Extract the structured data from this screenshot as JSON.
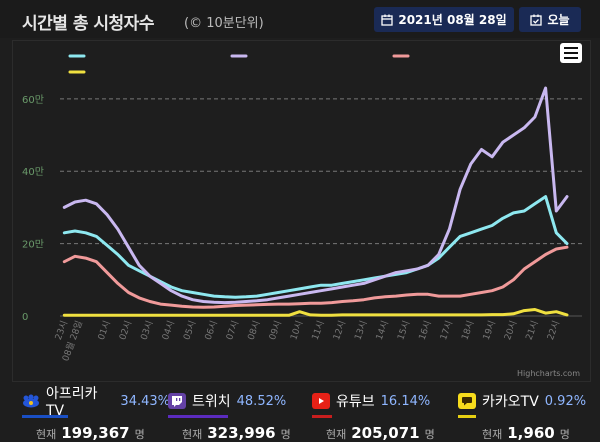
{
  "header": {
    "title": "시간별 총 시청자수",
    "subtitle": "(© 10분단위)",
    "date_label": "2021년 08월 28일",
    "today_label": "오늘"
  },
  "chart": {
    "watermark": "Highcharts.com"
  },
  "chart_data": {
    "type": "line",
    "ylim": [
      0,
      65
    ],
    "ylabel": "",
    "y_ticks": [
      "0",
      "20만",
      "40만",
      "60만"
    ],
    "x_ticks": [
      "23시",
      "08월 28일",
      "01시",
      "02시",
      "03시",
      "04시",
      "05시",
      "06시",
      "07시",
      "08시",
      "09시",
      "10시",
      "11시",
      "12시",
      "13시",
      "14시",
      "15시",
      "16시",
      "17시",
      "18시",
      "19시",
      "20시",
      "21시",
      "22시"
    ],
    "x": [
      -1,
      -0.5,
      0,
      0.5,
      1,
      1.5,
      2,
      2.5,
      3,
      3.5,
      4,
      4.5,
      5,
      5.5,
      6,
      6.5,
      7,
      7.5,
      8,
      8.5,
      9,
      9.5,
      10,
      10.5,
      11,
      11.5,
      12,
      12.5,
      13,
      13.5,
      14,
      14.5,
      15,
      15.5,
      16,
      16.5,
      17,
      17.5,
      18,
      18.5,
      19,
      19.5,
      20,
      20.5,
      21,
      21.5,
      22,
      22.5
    ],
    "series": [
      {
        "color": "#8ee8f0",
        "values": [
          23,
          23.5,
          23,
          22,
          19.5,
          17,
          14,
          12.5,
          11,
          9.5,
          8,
          7,
          6.5,
          6,
          5.5,
          5.3,
          5.2,
          5.3,
          5.5,
          6,
          6.5,
          7,
          7.5,
          8,
          8.5,
          8.5,
          9,
          9.5,
          10,
          10.5,
          11,
          11.5,
          12,
          13,
          14,
          16,
          19,
          22,
          23,
          24,
          25,
          27,
          28.5,
          29,
          31,
          33,
          23,
          20
        ]
      },
      {
        "color": "#c9b8f0",
        "values": [
          30,
          31.5,
          32,
          31,
          28,
          24,
          19,
          14,
          11,
          9,
          7,
          5.5,
          4.5,
          4,
          3.8,
          3.7,
          3.8,
          4,
          4.2,
          4.5,
          5,
          5.5,
          6,
          6.5,
          7,
          7.5,
          8,
          8.5,
          9,
          10,
          11,
          12,
          12.5,
          13,
          14,
          17,
          24,
          35,
          42,
          46,
          44,
          48,
          50,
          52,
          55,
          63,
          29,
          33
        ]
      },
      {
        "color": "#f09a9a",
        "values": [
          15,
          16.5,
          16,
          15,
          12,
          9,
          6.5,
          5,
          4,
          3.3,
          3,
          2.7,
          2.5,
          2.4,
          2.5,
          2.7,
          2.9,
          3,
          3.1,
          3.2,
          3.3,
          3.3,
          3.4,
          3.5,
          3.5,
          3.7,
          4,
          4.2,
          4.5,
          5,
          5.3,
          5.5,
          5.8,
          6,
          6,
          5.5,
          5.5,
          5.5,
          6,
          6.5,
          7,
          8,
          10,
          13,
          15,
          17,
          18.5,
          19
        ]
      },
      {
        "color": "#f0e040",
        "values": [
          0.2,
          0.2,
          0.2,
          0.2,
          0.2,
          0.2,
          0.2,
          0.2,
          0.2,
          0.2,
          0.2,
          0.2,
          0.2,
          0.2,
          0.2,
          0.2,
          0.2,
          0.2,
          0.2,
          0.2,
          0.2,
          0.2,
          1.2,
          0.3,
          0.2,
          0.2,
          0.3,
          0.3,
          0.3,
          0.3,
          0.3,
          0.3,
          0.3,
          0.3,
          0.3,
          0.3,
          0.3,
          0.3,
          0.3,
          0.3,
          0.4,
          0.4,
          0.6,
          1.5,
          1.8,
          0.8,
          1.2,
          0.3
        ]
      }
    ]
  },
  "platforms": [
    {
      "name": "아프리카TV",
      "pct": "34.43%",
      "count_label": "현재",
      "count": "199,367",
      "unit": "명",
      "bar_color": "#1a4fc4",
      "icon": "afreeca-logo-icon"
    },
    {
      "name": "트위치",
      "pct": "48.52%",
      "count_label": "현재",
      "count": "323,996",
      "unit": "명",
      "bar_color": "#5b2bbf",
      "icon": "twitch-logo-icon"
    },
    {
      "name": "유튜브",
      "pct": "16.14%",
      "count_label": "현재",
      "count": "205,071",
      "unit": "명",
      "bar_color": "#c81e1e",
      "icon": "youtube-logo-icon"
    },
    {
      "name": "카카오TV",
      "pct": "0.92%",
      "count_label": "현재",
      "count": "1,960",
      "unit": "명",
      "bar_color": "#e6cf12",
      "icon": "kakaotv-logo-icon"
    }
  ]
}
